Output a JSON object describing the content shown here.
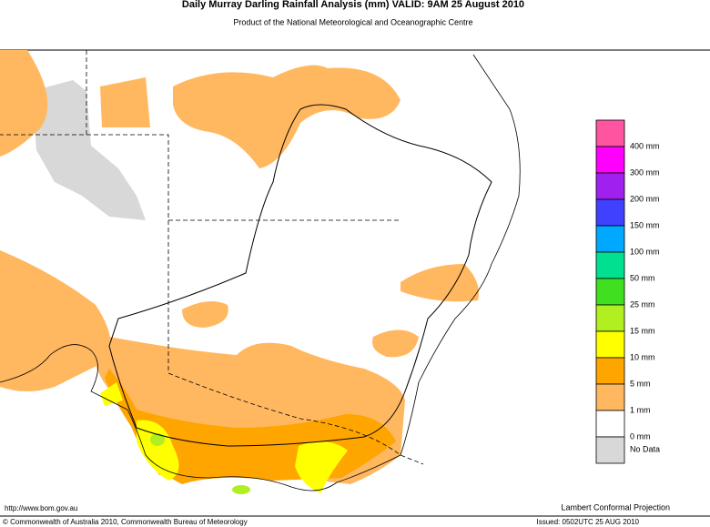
{
  "header": {
    "title": "Daily Murray Darling Rainfall Analysis (mm)  VALID: 9AM 25 August 2010",
    "subtitle": "Product of the National Meteorological and Oceanographic Centre"
  },
  "legend": {
    "colors": [
      "#ff55a0",
      "#ff00ff",
      "#a020f0",
      "#4040ff",
      "#00a8ff",
      "#00e090",
      "#40e020",
      "#b0f020",
      "#ffff00",
      "#ffa500",
      "#ffb860",
      "#ffffff",
      "#d8d8d8"
    ],
    "labels": [
      "400 mm",
      "300 mm",
      "200 mm",
      "150 mm",
      "100 mm",
      "50 mm",
      "25 mm",
      "15 mm",
      "10 mm",
      "5 mm",
      "1 mm",
      "0 mm",
      "No Data"
    ]
  },
  "footer": {
    "url": "http://www.bom.gov.au",
    "projection": "Lambert Conformal Projection",
    "copyright": "© Commonwealth of Australia 2010, Commonwealth Bureau of Meteorology",
    "issued": "Issued: 0502UTC 25 AUG 2010"
  }
}
